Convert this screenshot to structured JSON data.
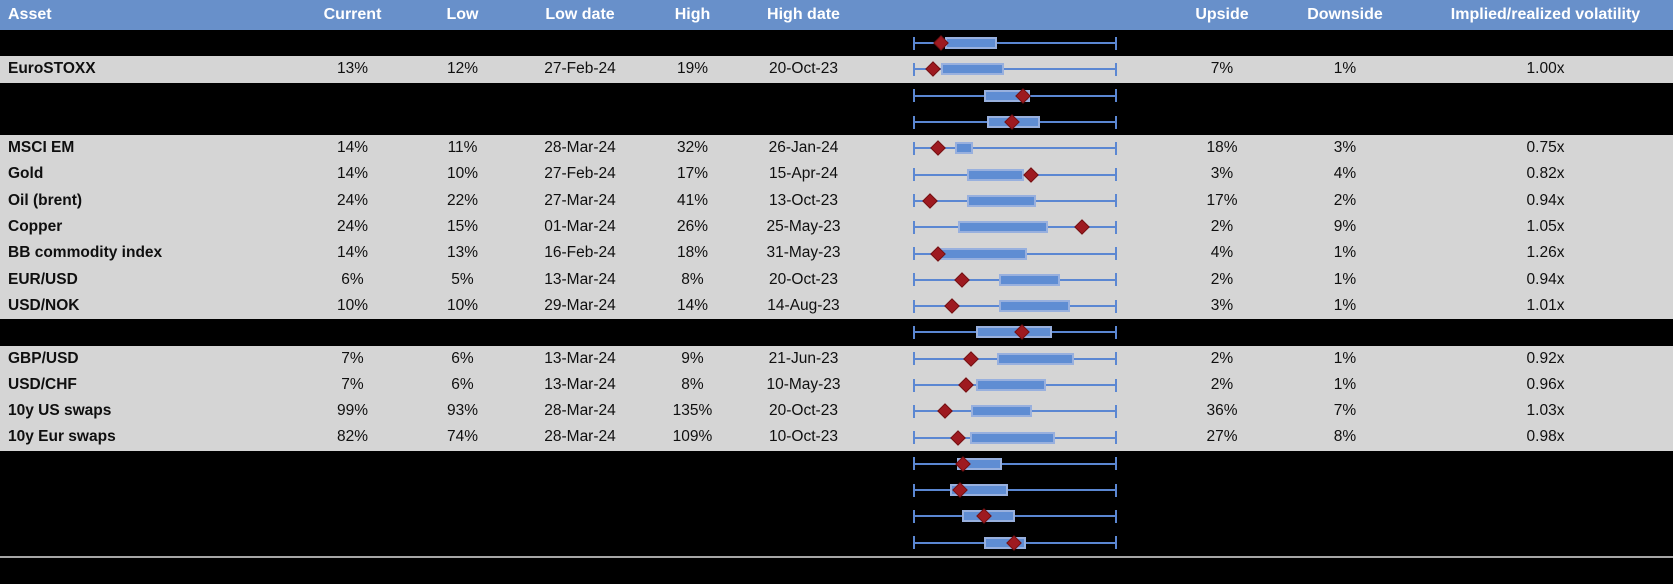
{
  "header": {
    "asset": "Asset",
    "current": "Current",
    "low": "Low",
    "low_date": "Low date",
    "high": "High",
    "high_date": "High date",
    "plot": "",
    "upside": "Upside",
    "downside": "Downside",
    "iv_rv": "Implied/realized volatility"
  },
  "colors": {
    "header_bg": "#6890ca",
    "row_gray": "#d5d5d5",
    "row_black": "#000000",
    "whisker_blue": "#5b87d2",
    "box_fill": "#5f8dd3",
    "box_border": "#98b0de",
    "marker_red": "#9e1a20",
    "separator_gray": "#a6a6a6",
    "header_text": "#ffffff"
  },
  "chart_data": {
    "type": "table",
    "note": "Each row carries an embedded horizontal box-whisker mini chart; whiskers span the full 0-100 range, box = [box_low_pct, box_high_pct], red diamond marker = marker_pct (percent of whisker span).",
    "boxplot_axis": {
      "min_pct": 0,
      "max_pct": 100
    },
    "rows": [
      {
        "style": "black",
        "label": "",
        "current": "",
        "low": "",
        "low_date": "",
        "high": "",
        "high_date": "",
        "upside": "",
        "downside": "",
        "iv_rv": "",
        "box_low_pct": 15.9,
        "box_high_pct": 41.2,
        "marker_pct": 13.7
      },
      {
        "style": "gray",
        "label": "EuroSTOXX",
        "current": "13%",
        "low": "12%",
        "low_date": "27-Feb-24",
        "high": "19%",
        "high_date": "20-Oct-23",
        "upside": "7%",
        "downside": "1%",
        "iv_rv": "1.00x",
        "box_low_pct": 13.9,
        "box_high_pct": 44.5,
        "marker_pct": 9.6
      },
      {
        "style": "black",
        "label": "",
        "current": "",
        "low": "",
        "low_date": "",
        "high": "",
        "high_date": "",
        "upside": "",
        "downside": "",
        "iv_rv": "",
        "box_low_pct": 34.7,
        "box_high_pct": 57.6,
        "marker_pct": 53.8
      },
      {
        "style": "black",
        "label": "",
        "current": "",
        "low": "",
        "low_date": "",
        "high": "",
        "high_date": "",
        "upside": "",
        "downside": "",
        "iv_rv": "",
        "box_low_pct": 36.3,
        "box_high_pct": 62.5,
        "marker_pct": 48.6
      },
      {
        "style": "gray",
        "label": "MSCI EM",
        "current": "14%",
        "low": "11%",
        "low_date": "28-Mar-24",
        "high": "32%",
        "high_date": "26-Jan-24",
        "upside": "18%",
        "downside": "3%",
        "iv_rv": "0.75x",
        "box_low_pct": 20.8,
        "box_high_pct": 29.5,
        "marker_pct": 12.3
      },
      {
        "style": "gray",
        "label": "Gold",
        "current": "14%",
        "low": "10%",
        "low_date": "27-Feb-24",
        "high": "17%",
        "high_date": "15-Apr-24",
        "upside": "3%",
        "downside": "4%",
        "iv_rv": "0.82x",
        "box_low_pct": 26.5,
        "box_high_pct": 54.3,
        "marker_pct": 57.9
      },
      {
        "style": "gray",
        "label": "Oil (brent)",
        "current": "24%",
        "low": "22%",
        "low_date": "27-Mar-24",
        "high": "41%",
        "high_date": "13-Oct-23",
        "upside": "17%",
        "downside": "2%",
        "iv_rv": "0.94x",
        "box_low_pct": 26.5,
        "box_high_pct": 60.5,
        "marker_pct": 8.5
      },
      {
        "style": "gray",
        "label": "Copper",
        "current": "24%",
        "low": "15%",
        "low_date": "01-Mar-24",
        "high": "26%",
        "high_date": "25-May-23",
        "upside": "2%",
        "downside": "9%",
        "iv_rv": "1.05x",
        "box_low_pct": 21.9,
        "box_high_pct": 66.3,
        "marker_pct": 83.0
      },
      {
        "style": "gray",
        "label": "BB commodity index",
        "current": "14%",
        "low": "13%",
        "low_date": "16-Feb-24",
        "high": "18%",
        "high_date": "31-May-23",
        "upside": "4%",
        "downside": "1%",
        "iv_rv": "1.26x",
        "box_low_pct": 13.4,
        "box_high_pct": 56.0,
        "marker_pct": 12.1
      },
      {
        "style": "gray",
        "label": "EUR/USD",
        "current": "6%",
        "low": "5%",
        "low_date": "13-Mar-24",
        "high": "8%",
        "high_date": "20-Oct-23",
        "upside": "2%",
        "downside": "1%",
        "iv_rv": "0.94x",
        "box_low_pct": 42.0,
        "box_high_pct": 72.3,
        "marker_pct": 24.1
      },
      {
        "style": "gray",
        "label": "USD/NOK",
        "current": "10%",
        "low": "10%",
        "low_date": "29-Mar-24",
        "high": "14%",
        "high_date": "14-Aug-23",
        "upside": "3%",
        "downside": "1%",
        "iv_rv": "1.01x",
        "box_low_pct": 42.0,
        "box_high_pct": 77.2,
        "marker_pct": 19.1
      },
      {
        "style": "black",
        "label": "",
        "current": "",
        "low": "",
        "low_date": "",
        "high": "",
        "high_date": "",
        "upside": "",
        "downside": "",
        "iv_rv": "",
        "box_low_pct": 31.1,
        "box_high_pct": 68.2,
        "marker_pct": 53.2
      },
      {
        "style": "gray",
        "label": "GBP/USD",
        "current": "7%",
        "low": "6%",
        "low_date": "13-Mar-24",
        "high": "9%",
        "high_date": "21-Jun-23",
        "upside": "2%",
        "downside": "1%",
        "iv_rv": "0.92x",
        "box_low_pct": 41.2,
        "box_high_pct": 78.8,
        "marker_pct": 28.5
      },
      {
        "style": "gray",
        "label": "USD/CHF",
        "current": "7%",
        "low": "6%",
        "low_date": "13-Mar-24",
        "high": "8%",
        "high_date": "10-May-23",
        "upside": "2%",
        "downside": "1%",
        "iv_rv": "0.96x",
        "box_low_pct": 31.1,
        "box_high_pct": 65.3,
        "marker_pct": 26.2
      },
      {
        "style": "gray",
        "label": "10y US swaps",
        "current": "99%",
        "low": "93%",
        "low_date": "28-Mar-24",
        "high": "135%",
        "high_date": "20-Oct-23",
        "upside": "36%",
        "downside": "7%",
        "iv_rv": "1.03x",
        "box_low_pct": 28.6,
        "box_high_pct": 58.4,
        "marker_pct": 15.9
      },
      {
        "style": "gray",
        "label": "10y Eur swaps",
        "current": "82%",
        "low": "74%",
        "low_date": "28-Mar-24",
        "high": "109%",
        "high_date": "10-Oct-23",
        "upside": "27%",
        "downside": "8%",
        "iv_rv": "0.98x",
        "box_low_pct": 28.1,
        "box_high_pct": 69.5,
        "marker_pct": 21.9
      },
      {
        "style": "black",
        "label": "",
        "current": "",
        "low": "",
        "low_date": "",
        "high": "",
        "high_date": "",
        "upside": "",
        "downside": "",
        "iv_rv": "",
        "box_low_pct": 21.6,
        "box_high_pct": 43.7,
        "marker_pct": 24.5
      },
      {
        "style": "black",
        "label": "",
        "current": "",
        "low": "",
        "low_date": "",
        "high": "",
        "high_date": "",
        "upside": "",
        "downside": "",
        "iv_rv": "",
        "box_low_pct": 18.0,
        "box_high_pct": 46.4,
        "marker_pct": 22.9
      },
      {
        "style": "black",
        "label": "",
        "current": "",
        "low": "",
        "low_date": "",
        "high": "",
        "high_date": "",
        "upside": "",
        "downside": "",
        "iv_rv": "",
        "box_low_pct": 24.0,
        "box_high_pct": 50.2,
        "marker_pct": 34.7
      },
      {
        "style": "black",
        "label": "",
        "current": "",
        "low": "",
        "low_date": "",
        "high": "",
        "high_date": "",
        "upside": "",
        "downside": "",
        "iv_rv": "",
        "box_low_pct": 34.7,
        "box_high_pct": 55.6,
        "marker_pct": 49.4
      }
    ]
  }
}
